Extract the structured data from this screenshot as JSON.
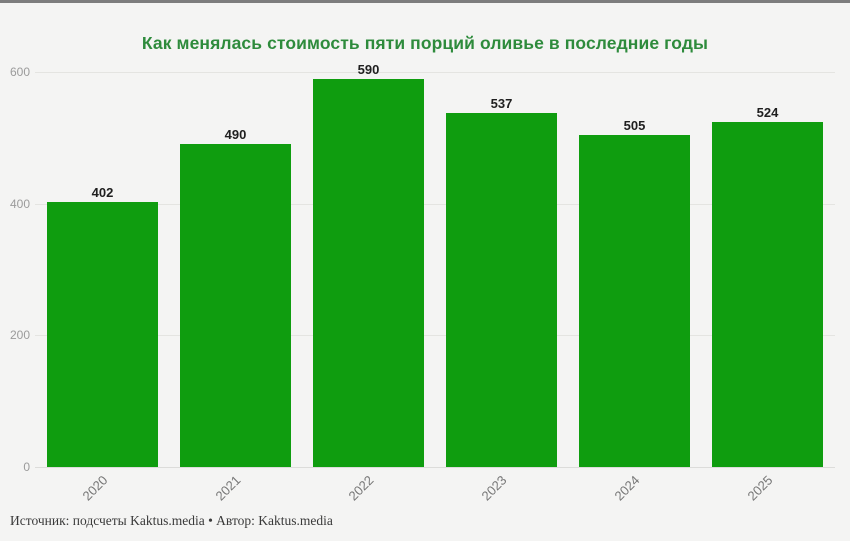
{
  "colors": {
    "background": "#f4f4f3",
    "top_strip": "#7d7d7d",
    "title_green": "#2e8b3c",
    "bar_green": "#0f9d0f",
    "gridline": "#e4e4e1",
    "y_tick_label": "#9b9b9b",
    "x_tick_label": "#767676",
    "value_label": "#1f1f1f"
  },
  "chart_data": {
    "type": "bar",
    "title": "Как менялась стоимость пяти порций оливье в последние годы",
    "categories": [
      "2020",
      "2021",
      "2022",
      "2023",
      "2024",
      "2025"
    ],
    "values": [
      402,
      490,
      590,
      537,
      505,
      524
    ],
    "xlabel": "",
    "ylabel": "",
    "ylim": [
      0,
      600
    ],
    "yticks": [
      0,
      200,
      400,
      600
    ],
    "grid": true,
    "legend_position": "none",
    "value_labels_shown": true,
    "x_labels_rotation_deg": -45
  },
  "footer": {
    "source_line": "Источник: подсчеты Kaktus.media • Автор: Kaktus.media"
  }
}
